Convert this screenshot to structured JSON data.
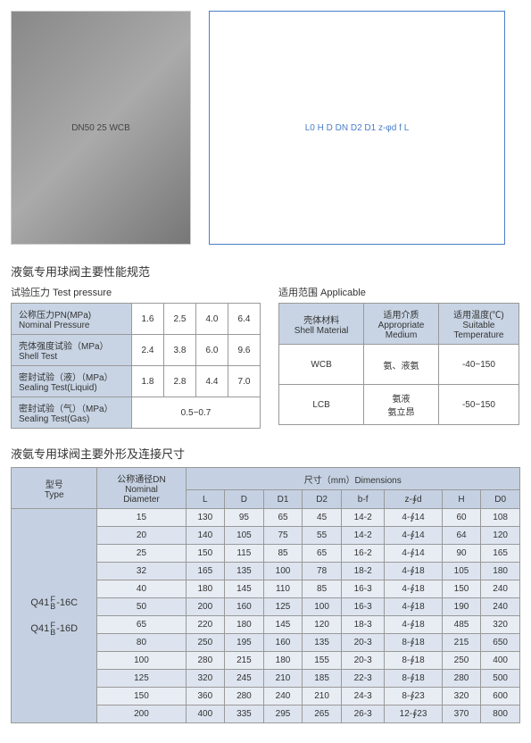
{
  "photo_label": "DN50 25 WCB",
  "diagram_labels": "L0  H  D  DN  D2  D1  z-φd  f  L",
  "section1_title": "液氨专用球阀主要性能规范",
  "table1": {
    "caption": "试验压力  Test pressure",
    "rows": [
      {
        "label": "公称压力PN(MPa)\nNominal Pressure",
        "v": [
          "1.6",
          "2.5",
          "4.0",
          "6.4"
        ]
      },
      {
        "label": "壳体强度试验（MPa）\nShell Test",
        "v": [
          "2.4",
          "3.8",
          "6.0",
          "9.6"
        ]
      },
      {
        "label": "密封试验（液）（MPa）\nSealing Test(Liquid)",
        "v": [
          "1.8",
          "2.8",
          "4.4",
          "7.0"
        ]
      },
      {
        "label": "密封试验（气）（MPa）\nSealing Test(Gas)",
        "v": [
          "0.5~0.7"
        ],
        "span": 4
      }
    ]
  },
  "table2": {
    "caption": "适用范围 Applicable",
    "headers": [
      "壳体材料\nShell Material",
      "适用介质\nAppropriate\nMedium",
      "适用温度(℃)\nSuitable\nTemperature"
    ],
    "rows": [
      [
        "WCB",
        "氨、液氨",
        "-40~150"
      ],
      [
        "LCB",
        "氨液\n氨立昂",
        "-50~150"
      ]
    ]
  },
  "section2_title": "液氨专用球阀主要外形及连接尺寸",
  "dims": {
    "headers": {
      "type": "型号\nType",
      "dn": "公称通径DN\nNominal\nDiameter",
      "dims_span": "尺寸（mm）Dimensions",
      "cols": [
        "L",
        "D",
        "D1",
        "D2",
        "b-f",
        "z-∮d",
        "H",
        "D0"
      ]
    },
    "types": [
      "Q41 F/B -16C",
      "Q41 F/B -16D"
    ],
    "rows": [
      [
        "15",
        "130",
        "95",
        "65",
        "45",
        "14-2",
        "4-∮14",
        "60",
        "108"
      ],
      [
        "20",
        "140",
        "105",
        "75",
        "55",
        "14-2",
        "4-∮14",
        "64",
        "120"
      ],
      [
        "25",
        "150",
        "115",
        "85",
        "65",
        "16-2",
        "4-∮14",
        "90",
        "165"
      ],
      [
        "32",
        "165",
        "135",
        "100",
        "78",
        "18-2",
        "4-∮18",
        "105",
        "180"
      ],
      [
        "40",
        "180",
        "145",
        "110",
        "85",
        "16-3",
        "4-∮18",
        "150",
        "240"
      ],
      [
        "50",
        "200",
        "160",
        "125",
        "100",
        "16-3",
        "4-∮18",
        "190",
        "240"
      ],
      [
        "65",
        "220",
        "180",
        "145",
        "120",
        "18-3",
        "4-∮18",
        "485",
        "320"
      ],
      [
        "80",
        "250",
        "195",
        "160",
        "135",
        "20-3",
        "8-∮18",
        "215",
        "650"
      ],
      [
        "100",
        "280",
        "215",
        "180",
        "155",
        "20-3",
        "8-∮18",
        "250",
        "400"
      ],
      [
        "125",
        "320",
        "245",
        "210",
        "185",
        "22-3",
        "8-∮18",
        "280",
        "500"
      ],
      [
        "150",
        "360",
        "280",
        "240",
        "210",
        "24-3",
        "8-∮23",
        "320",
        "600"
      ],
      [
        "200",
        "400",
        "335",
        "295",
        "265",
        "26-3",
        "12-∮23",
        "370",
        "800"
      ]
    ]
  }
}
